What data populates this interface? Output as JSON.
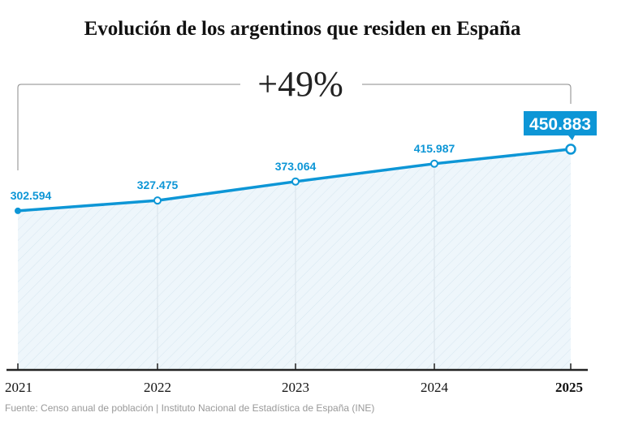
{
  "title": "Evolución de los argentinos que residen en España",
  "source": "Fuente: Censo anual de población | Instituto Nacional de Estadística de España (INE)",
  "chart_data": {
    "type": "area",
    "title": "Evolución de los argentinos que residen en España",
    "categories": [
      "2021",
      "2022",
      "2023",
      "2024",
      "2025"
    ],
    "values": [
      302594,
      327475,
      373064,
      415987,
      450883
    ],
    "labels": [
      "302.594",
      "327.475",
      "373.064",
      "415.987",
      "450.883"
    ],
    "highlight_category": "2025",
    "annotation": "+49%",
    "ylim": [
      -80000,
      480000
    ],
    "grid": false,
    "colors": {
      "line": "#0d96d6",
      "fill": "#eef6fb",
      "axis": "#222222"
    }
  }
}
